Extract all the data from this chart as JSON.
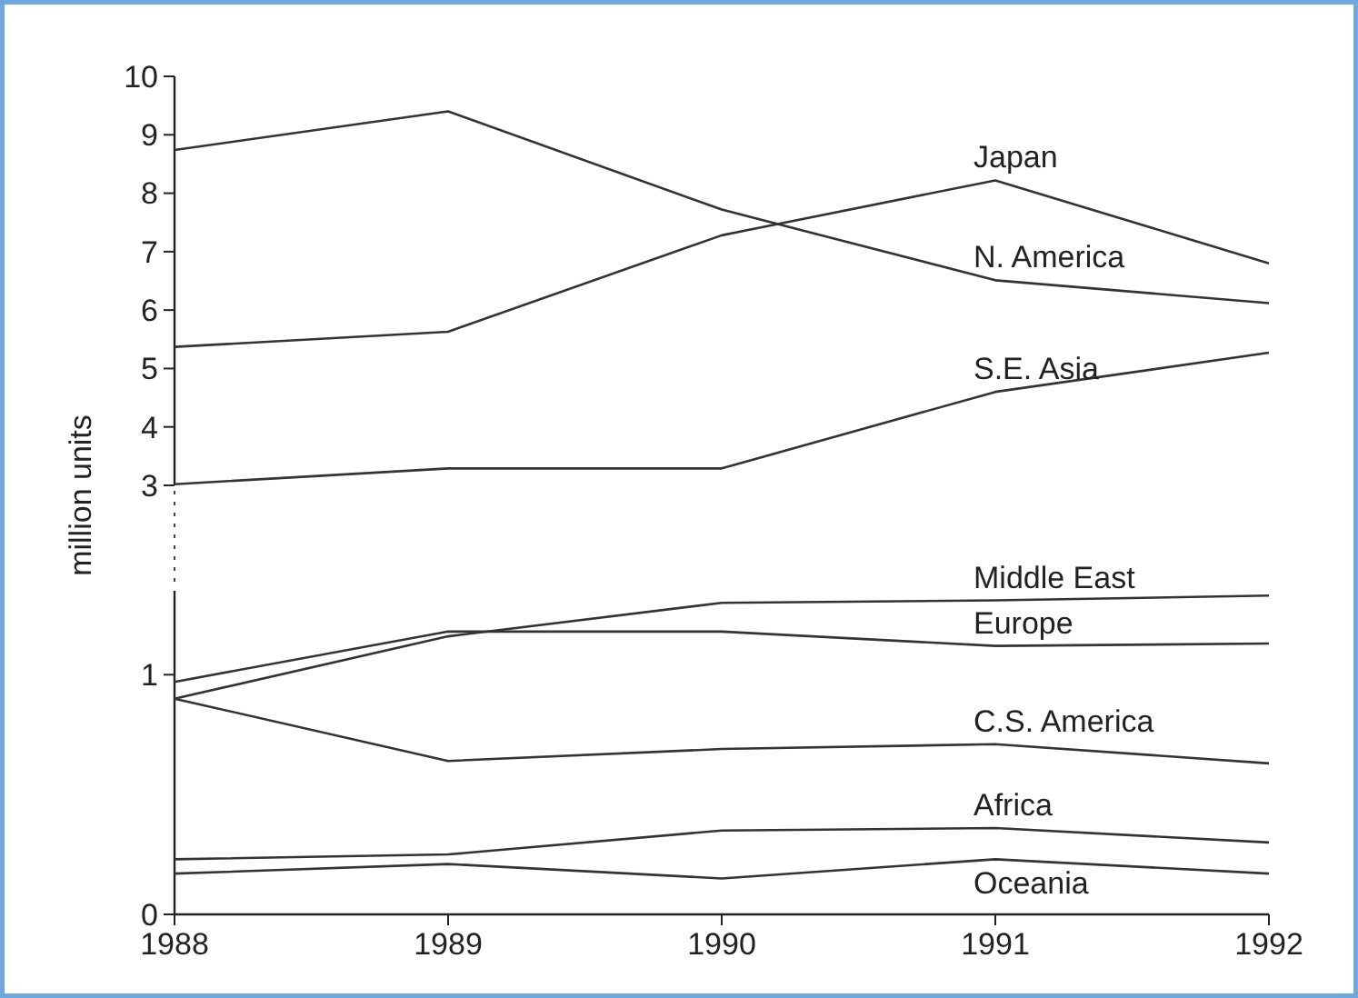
{
  "chart_data": [
    {
      "type": "line",
      "ylabel": "million units",
      "x": [
        1988,
        1989,
        1990,
        1991,
        1992
      ],
      "xlim": [
        1988,
        1992
      ],
      "ylim": [
        3,
        10
      ],
      "yticks": [
        3,
        4,
        5,
        6,
        7,
        8,
        9,
        10
      ],
      "tick_labels": "y",
      "series": [
        {
          "name": "Japan",
          "color": "#333333",
          "values": [
            5.37,
            5.63,
            7.28,
            8.22,
            6.8
          ]
        },
        {
          "name": "N. America",
          "color": "#333333",
          "values": [
            8.74,
            9.4,
            7.72,
            6.51,
            6.12
          ]
        },
        {
          "name": "S.E. Asia",
          "color": "#333333",
          "values": [
            3.02,
            3.29,
            3.29,
            4.6,
            5.27
          ]
        }
      ]
    },
    {
      "type": "line",
      "x": [
        1988,
        1989,
        1990,
        1991,
        1992
      ],
      "xlim": [
        1988,
        1992
      ],
      "xticks": [
        1988,
        1989,
        1990,
        1991,
        1992
      ],
      "ylim": [
        0,
        1.35
      ],
      "yticks": [
        0,
        1
      ],
      "series": [
        {
          "name": "Middle East",
          "color": "#333333",
          "values": [
            0.9,
            1.16,
            1.3,
            1.31,
            1.33
          ]
        },
        {
          "name": "Europe",
          "color": "#333333",
          "values": [
            0.97,
            1.18,
            1.18,
            1.12,
            1.13
          ]
        },
        {
          "name": "C.S. America",
          "color": "#333333",
          "values": [
            0.9,
            0.64,
            0.69,
            0.71,
            0.63
          ]
        },
        {
          "name": "Africa",
          "color": "#333333",
          "values": [
            0.23,
            0.25,
            0.35,
            0.36,
            0.3
          ]
        },
        {
          "name": "Oceania",
          "color": "#333333",
          "values": [
            0.17,
            0.21,
            0.15,
            0.23,
            0.17
          ]
        }
      ]
    }
  ]
}
